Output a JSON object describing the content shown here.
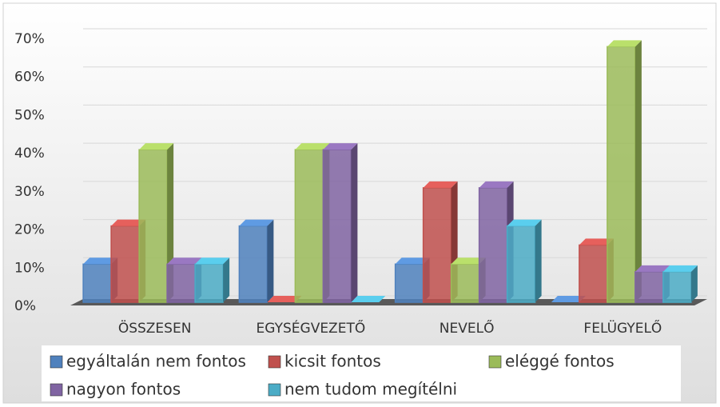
{
  "chart_data": {
    "type": "bar3d",
    "categories": [
      "ÖSSZESEN",
      "EGYSÉGVEZETŐ",
      "NEVELŐ",
      "FELÜGYELŐ"
    ],
    "series": [
      {
        "name": "egyáltalán nem fontos",
        "color": "#4f81bd",
        "values": [
          10,
          20,
          10,
          0
        ]
      },
      {
        "name": "kicsit fontos",
        "color": "#c0504d",
        "values": [
          20,
          0,
          30,
          15
        ]
      },
      {
        "name": "eléggé fontos",
        "color": "#9bbb59",
        "values": [
          40,
          40,
          10,
          67
        ]
      },
      {
        "name": "nagyon fontos",
        "color": "#8064a2",
        "values": [
          10,
          40,
          30,
          8
        ]
      },
      {
        "name": "nem tudom megítélni",
        "color": "#4bacc6",
        "values": [
          10,
          0,
          20,
          8
        ]
      }
    ],
    "ylim": [
      0,
      70
    ],
    "yticks": [
      {
        "value": 0,
        "label": "0%"
      },
      {
        "value": 10,
        "label": "10%"
      },
      {
        "value": 20,
        "label": "20%"
      },
      {
        "value": 30,
        "label": "30%"
      },
      {
        "value": 40,
        "label": "40%"
      },
      {
        "value": 50,
        "label": "50%"
      },
      {
        "value": 60,
        "label": "60%"
      },
      {
        "value": 70,
        "label": "70%"
      }
    ],
    "grid": true
  }
}
